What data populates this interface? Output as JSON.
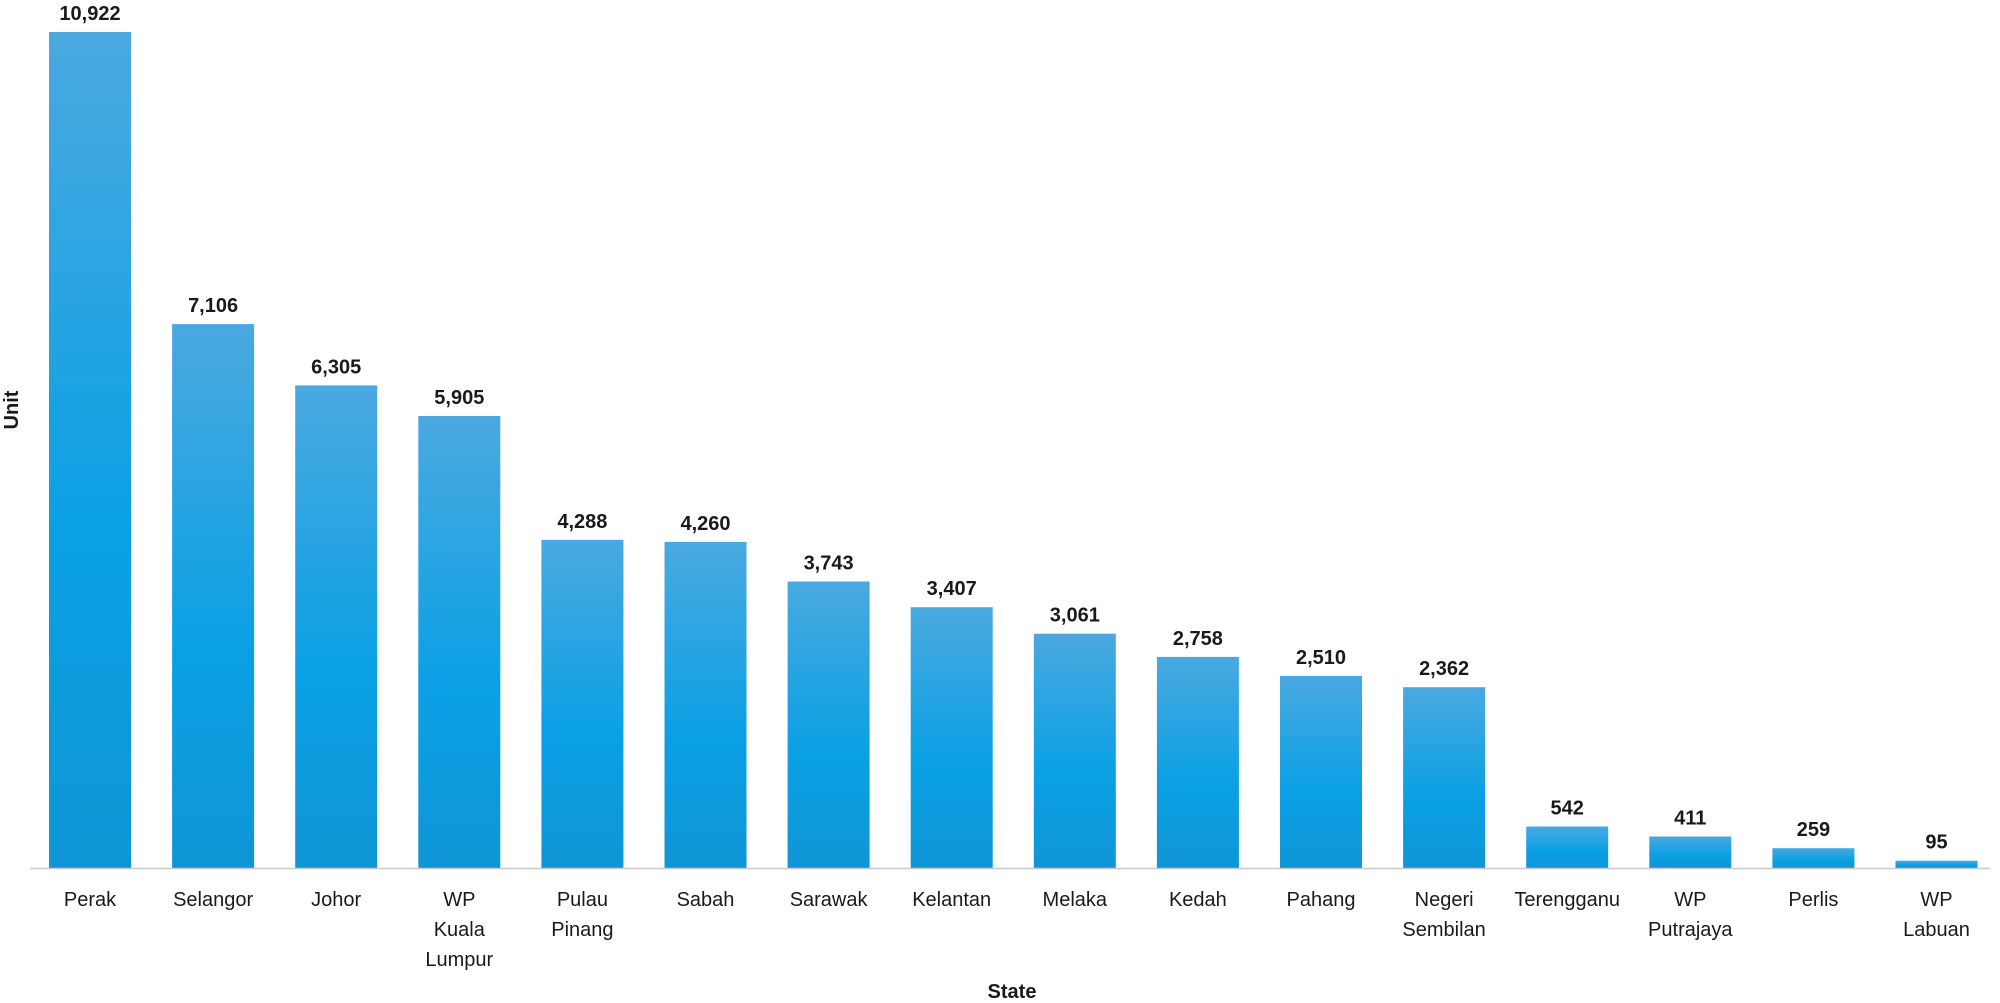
{
  "chart_data": {
    "type": "bar",
    "categories": [
      "Perak",
      "Selangor",
      "Johor",
      "WP Kuala Lumpur",
      "Pulau Pinang",
      "Sabah",
      "Sarawak",
      "Kelantan",
      "Melaka",
      "Kedah",
      "Pahang",
      "Negeri Sembilan",
      "Terengganu",
      "WP Putrajaya",
      "Perlis",
      "WP Labuan"
    ],
    "category_lines": [
      [
        "Perak"
      ],
      [
        "Selangor"
      ],
      [
        "Johor"
      ],
      [
        "WP",
        "Kuala",
        "Lumpur"
      ],
      [
        "Pulau",
        "Pinang"
      ],
      [
        "Sabah"
      ],
      [
        "Sarawak"
      ],
      [
        "Kelantan"
      ],
      [
        "Melaka"
      ],
      [
        "Kedah"
      ],
      [
        "Pahang"
      ],
      [
        "Negeri",
        "Sembilan"
      ],
      [
        "Terengganu"
      ],
      [
        "WP",
        "Putrajaya"
      ],
      [
        "Perlis"
      ],
      [
        "WP",
        "Labuan"
      ]
    ],
    "values": [
      10922,
      7106,
      6305,
      5905,
      4288,
      4260,
      3743,
      3407,
      3061,
      2758,
      2510,
      2362,
      542,
      411,
      259,
      95
    ],
    "value_labels": [
      "10,922",
      "7,106",
      "6,305",
      "5,905",
      "4,288",
      "4,260",
      "3,743",
      "3,407",
      "3,061",
      "2,758",
      "2,510",
      "2,362",
      "542",
      "411",
      "259",
      "95"
    ],
    "title": "",
    "xlabel": "State",
    "ylabel": "Unit",
    "ylim": [
      0,
      10922
    ],
    "grid": false,
    "legend": "none",
    "colors": {
      "bar_top": "#4aa9e0",
      "bar_bottom": "#0aa0e4",
      "bar_base": "#0f96d6",
      "axis_line": "#c8c8c8",
      "text": "#1a1a1a"
    }
  }
}
